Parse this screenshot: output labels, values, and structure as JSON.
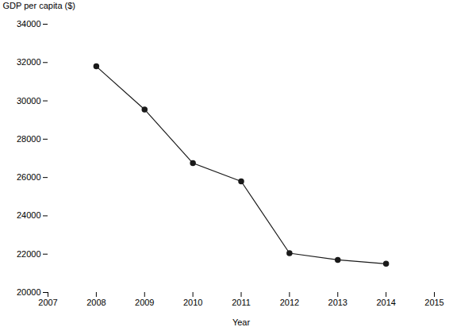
{
  "chart_data": {
    "type": "line",
    "x": [
      2008,
      2009,
      2010,
      2011,
      2012,
      2013,
      2014
    ],
    "values": [
      31800,
      29550,
      26750,
      25800,
      22050,
      21700,
      21500
    ],
    "xlabel": "Year",
    "ylabel": "GDP per capita ($)",
    "xlim": [
      2007,
      2015
    ],
    "ylim": [
      20000,
      34000
    ],
    "xticks": [
      2007,
      2008,
      2009,
      2010,
      2011,
      2012,
      2013,
      2014,
      2015
    ],
    "yticks": [
      20000,
      22000,
      24000,
      26000,
      28000,
      30000,
      32000,
      34000
    ],
    "color": "#1a1a1a",
    "marker": "circle",
    "grid": false
  }
}
